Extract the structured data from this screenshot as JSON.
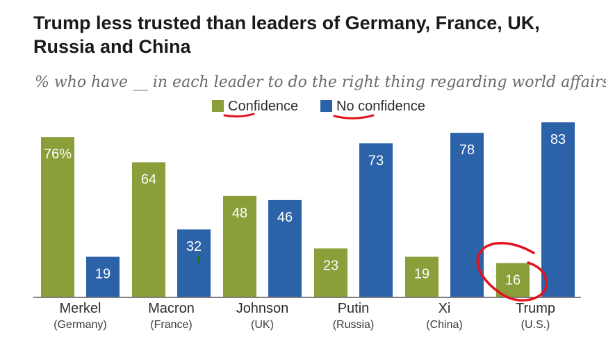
{
  "title": "Trump less trusted than leaders of Germany, France, UK, Russia and China",
  "subtitle": "% who have __ in each leader to do the right thing regarding world affairs",
  "colors": {
    "confidence": "#8a9e3a",
    "no_confidence": "#2b62a8",
    "annotation": "#e0141e"
  },
  "chart_data": {
    "type": "bar",
    "title": "Trump less trusted than leaders of Germany, France, UK, Russia and China",
    "subtitle": "% who have __ in each leader to do the right thing regarding world affairs",
    "legend": "top-center",
    "ylim": [
      0,
      100
    ],
    "grid": false,
    "categories": [
      "Merkel",
      "Macron",
      "Johnson",
      "Putin",
      "Xi",
      "Trump"
    ],
    "category_sublabels": [
      "(Germany)",
      "(France)",
      "(UK)",
      "(Russia)",
      "(China)",
      "(U.S.)"
    ],
    "series": [
      {
        "name": "Confidence",
        "values": [
          76,
          64,
          48,
          23,
          19,
          16
        ],
        "labels": [
          "76%",
          "64",
          "48",
          "23",
          "19",
          "16"
        ]
      },
      {
        "name": "No confidence",
        "values": [
          19,
          32,
          46,
          73,
          78,
          83
        ],
        "labels": [
          "19",
          "32",
          "46",
          "73",
          "78",
          "83"
        ]
      }
    ]
  }
}
